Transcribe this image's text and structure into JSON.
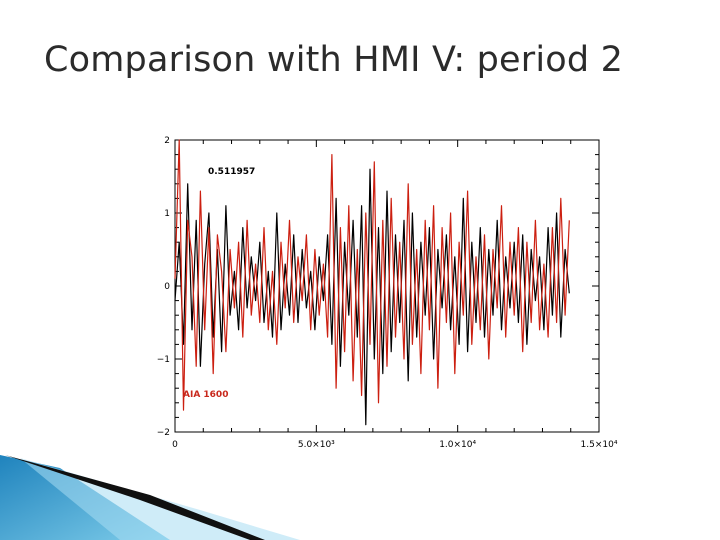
{
  "slide": {
    "title": "Comparison with HMI V: period 2"
  },
  "colors": {
    "series_black": "#000000",
    "series_red": "#cc1f10",
    "annotation_red": "#c8281c",
    "deco_blue": "#2a92c8",
    "deco_light": "#8fd0ee"
  },
  "chart_data": {
    "type": "line",
    "title": "",
    "xlabel": "",
    "ylabel": "",
    "xlim": [
      0,
      15000
    ],
    "ylim": [
      -2,
      2
    ],
    "x_ticks": [
      0,
      5000,
      10000,
      15000
    ],
    "x_tick_labels": [
      "0",
      "5.0×10³",
      "1.0×10⁴",
      "1.5×10⁴"
    ],
    "y_ticks": [
      -2,
      -1,
      0,
      1,
      2
    ],
    "y_tick_labels": [
      "−2",
      "−1",
      "0",
      "1",
      "2"
    ],
    "grid": false,
    "annotations": [
      {
        "text": "0.511957",
        "color": "black",
        "position": "top-left"
      },
      {
        "text": "AIA 1600",
        "color": "red",
        "position": "bottom-left"
      }
    ],
    "x": [
      0,
      150,
      300,
      450,
      600,
      750,
      900,
      1050,
      1200,
      1350,
      1500,
      1650,
      1800,
      1950,
      2100,
      2250,
      2400,
      2550,
      2700,
      2850,
      3000,
      3150,
      3300,
      3450,
      3600,
      3750,
      3900,
      4050,
      4200,
      4350,
      4500,
      4650,
      4800,
      4950,
      5100,
      5250,
      5400,
      5550,
      5700,
      5850,
      6000,
      6150,
      6300,
      6450,
      6600,
      6750,
      6900,
      7050,
      7200,
      7350,
      7500,
      7650,
      7800,
      7950,
      8100,
      8250,
      8400,
      8550,
      8700,
      8850,
      9000,
      9150,
      9300,
      9450,
      9600,
      9750,
      9900,
      10050,
      10200,
      10350,
      10500,
      10650,
      10800,
      10950,
      11100,
      11250,
      11400,
      11550,
      11700,
      11850,
      12000,
      12150,
      12300,
      12450,
      12600,
      12750,
      12900,
      13050,
      13200,
      13350,
      13500,
      13650,
      13800,
      13950
    ],
    "series": [
      {
        "color": "black",
        "values": [
          -0.2,
          0.6,
          -0.8,
          1.4,
          -0.6,
          0.9,
          -1.1,
          0.3,
          1.0,
          -0.7,
          0.5,
          -0.9,
          1.1,
          -0.4,
          0.2,
          -0.6,
          0.8,
          -0.3,
          0.4,
          -0.2,
          0.6,
          -0.5,
          0.2,
          -0.7,
          1.0,
          -0.6,
          0.3,
          -0.4,
          0.7,
          -0.5,
          0.5,
          -0.3,
          0.2,
          -0.6,
          0.4,
          -0.2,
          0.7,
          -0.8,
          1.2,
          -1.1,
          0.6,
          -0.4,
          0.9,
          -0.7,
          1.1,
          -1.9,
          1.6,
          -1.0,
          0.8,
          -1.2,
          1.3,
          -0.9,
          0.7,
          -0.5,
          0.9,
          -1.3,
          1.0,
          -0.7,
          0.6,
          -0.4,
          0.8,
          -1.0,
          0.5,
          -0.3,
          0.7,
          -0.6,
          0.4,
          -0.8,
          1.2,
          -0.9,
          0.6,
          -0.5,
          0.8,
          -0.7,
          0.5,
          -0.4,
          0.9,
          -0.6,
          0.4,
          -0.3,
          0.6,
          -0.5,
          0.7,
          -0.8,
          0.5,
          -0.2,
          0.4,
          -0.6,
          0.8,
          -0.4,
          1.0,
          -0.7,
          0.5,
          -0.1
        ]
      },
      {
        "color": "red",
        "values": [
          0.1,
          2.0,
          -1.7,
          0.9,
          0.4,
          -1.1,
          1.3,
          -0.6,
          0.8,
          -1.2,
          0.7,
          0.2,
          -0.9,
          0.5,
          -0.3,
          0.6,
          -0.7,
          0.9,
          -0.4,
          0.3,
          -0.5,
          0.8,
          -0.6,
          0.2,
          -0.8,
          0.6,
          -0.3,
          0.9,
          -0.5,
          0.4,
          -0.2,
          0.7,
          -0.6,
          0.5,
          -0.4,
          0.3,
          -0.7,
          1.8,
          -1.4,
          0.8,
          -0.9,
          1.1,
          -1.3,
          0.5,
          -1.5,
          1.0,
          -0.8,
          1.7,
          -1.6,
          0.9,
          -1.1,
          1.2,
          -0.7,
          0.6,
          -1.0,
          1.4,
          -0.8,
          0.5,
          -1.2,
          0.9,
          -0.6,
          1.1,
          -1.4,
          0.8,
          -0.5,
          1.0,
          -1.2,
          0.6,
          -0.4,
          1.3,
          -0.8,
          0.4,
          -0.6,
          0.7,
          -1.0,
          0.5,
          -0.3,
          1.1,
          -0.7,
          0.6,
          -0.4,
          0.8,
          -0.9,
          0.6,
          -0.5,
          0.9,
          -0.6,
          0.3,
          -0.7,
          0.8,
          -0.5,
          1.2,
          -0.4,
          0.9
        ]
      }
    ]
  }
}
